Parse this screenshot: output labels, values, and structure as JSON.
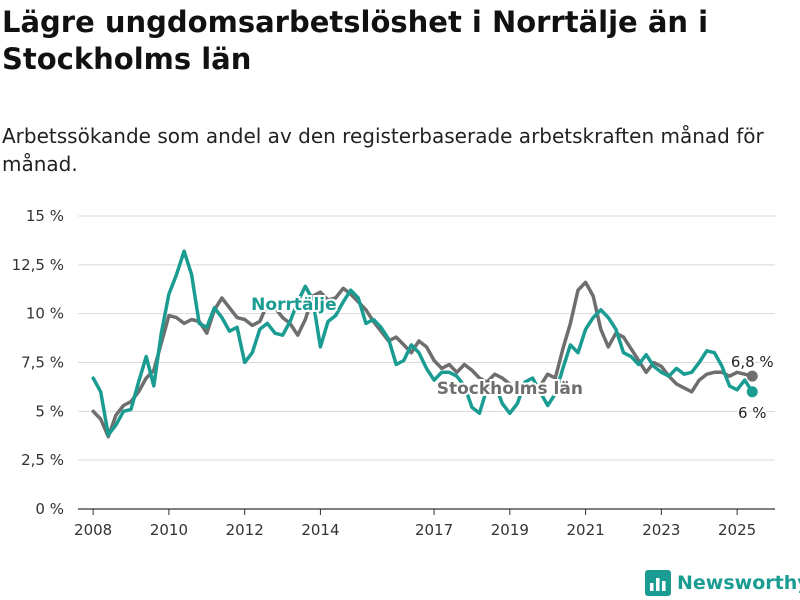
{
  "title": "Lägre ungdomsarbetslöshet i Norrtälje än i Stockholms län",
  "subtitle": "Arbetssökande som andel av den registerbaserade arbetskraften månad för månad.",
  "brand": {
    "name": "Newsworthy",
    "icon": "bar-chart-logo-icon",
    "color": "#1a9c92"
  },
  "chart_data": {
    "type": "line",
    "title": "Lägre ungdomsarbetslöshet i Norrtälje än i Stockholms län",
    "subtitle": "Arbetssökande som andel av den registerbaserade arbetskraften månad för månad.",
    "xlabel": "",
    "ylabel": "",
    "xlim": [
      2007.6,
      2026.0
    ],
    "ylim": [
      0,
      15
    ],
    "yticks": [
      0,
      2.5,
      5,
      7.5,
      10,
      12.5,
      15
    ],
    "ytick_labels": [
      "0 %",
      "2,5 %",
      "5 %",
      "7,5 %",
      "10 %",
      "12,5 %",
      "15 %"
    ],
    "xticks": [
      2008,
      2010,
      2012,
      2014,
      2017,
      2019,
      2021,
      2023,
      2025
    ],
    "xtick_labels": [
      "2008",
      "2010",
      "2012",
      "2014",
      "2017",
      "2019",
      "2021",
      "2023",
      "2025"
    ],
    "grid": "horizontal",
    "series": [
      {
        "name": "Stockholms län",
        "color": "#6e6e6e",
        "end_label": "6,8 %",
        "points": [
          [
            2008.0,
            5.0
          ],
          [
            2008.2,
            4.6
          ],
          [
            2008.4,
            3.7
          ],
          [
            2008.6,
            4.8
          ],
          [
            2008.8,
            5.3
          ],
          [
            2009.0,
            5.5
          ],
          [
            2009.2,
            6.0
          ],
          [
            2009.4,
            6.7
          ],
          [
            2009.6,
            7.1
          ],
          [
            2009.8,
            8.5
          ],
          [
            2010.0,
            9.9
          ],
          [
            2010.2,
            9.8
          ],
          [
            2010.4,
            9.5
          ],
          [
            2010.6,
            9.7
          ],
          [
            2010.8,
            9.6
          ],
          [
            2011.0,
            9.0
          ],
          [
            2011.2,
            10.2
          ],
          [
            2011.4,
            10.8
          ],
          [
            2011.6,
            10.3
          ],
          [
            2011.8,
            9.8
          ],
          [
            2012.0,
            9.7
          ],
          [
            2012.2,
            9.4
          ],
          [
            2012.4,
            9.6
          ],
          [
            2012.6,
            10.5
          ],
          [
            2012.8,
            10.3
          ],
          [
            2013.0,
            9.8
          ],
          [
            2013.2,
            9.5
          ],
          [
            2013.4,
            8.9
          ],
          [
            2013.6,
            9.7
          ],
          [
            2013.8,
            10.9
          ],
          [
            2014.0,
            11.1
          ],
          [
            2014.2,
            10.7
          ],
          [
            2014.4,
            10.8
          ],
          [
            2014.6,
            11.3
          ],
          [
            2014.8,
            11.0
          ],
          [
            2015.0,
            10.6
          ],
          [
            2015.2,
            10.2
          ],
          [
            2015.4,
            9.6
          ],
          [
            2015.6,
            9.1
          ],
          [
            2015.8,
            8.6
          ],
          [
            2016.0,
            8.8
          ],
          [
            2016.2,
            8.4
          ],
          [
            2016.4,
            8.0
          ],
          [
            2016.6,
            8.6
          ],
          [
            2016.8,
            8.3
          ],
          [
            2017.0,
            7.6
          ],
          [
            2017.2,
            7.2
          ],
          [
            2017.4,
            7.4
          ],
          [
            2017.6,
            7.0
          ],
          [
            2017.8,
            7.4
          ],
          [
            2018.0,
            7.1
          ],
          [
            2018.2,
            6.7
          ],
          [
            2018.4,
            6.5
          ],
          [
            2018.6,
            6.9
          ],
          [
            2018.8,
            6.7
          ],
          [
            2019.0,
            6.4
          ],
          [
            2019.2,
            6.0
          ],
          [
            2019.4,
            6.2
          ],
          [
            2019.6,
            5.9
          ],
          [
            2019.8,
            6.3
          ],
          [
            2020.0,
            6.9
          ],
          [
            2020.2,
            6.7
          ],
          [
            2020.4,
            8.2
          ],
          [
            2020.6,
            9.5
          ],
          [
            2020.8,
            11.2
          ],
          [
            2021.0,
            11.6
          ],
          [
            2021.2,
            10.9
          ],
          [
            2021.4,
            9.2
          ],
          [
            2021.6,
            8.3
          ],
          [
            2021.8,
            9.0
          ],
          [
            2022.0,
            8.8
          ],
          [
            2022.2,
            8.2
          ],
          [
            2022.4,
            7.6
          ],
          [
            2022.6,
            7.0
          ],
          [
            2022.8,
            7.5
          ],
          [
            2023.0,
            7.3
          ],
          [
            2023.2,
            6.8
          ],
          [
            2023.4,
            6.4
          ],
          [
            2023.6,
            6.2
          ],
          [
            2023.8,
            6.0
          ],
          [
            2024.0,
            6.6
          ],
          [
            2024.2,
            6.9
          ],
          [
            2024.4,
            7.0
          ],
          [
            2024.6,
            7.0
          ],
          [
            2024.8,
            6.8
          ],
          [
            2025.0,
            7.0
          ],
          [
            2025.2,
            6.9
          ],
          [
            2025.4,
            6.8
          ]
        ]
      },
      {
        "name": "Norrtälje",
        "color": "#1a9c92",
        "end_label": "6 %",
        "points": [
          [
            2008.0,
            6.7
          ],
          [
            2008.2,
            6.0
          ],
          [
            2008.4,
            3.8
          ],
          [
            2008.6,
            4.3
          ],
          [
            2008.8,
            5.0
          ],
          [
            2009.0,
            5.1
          ],
          [
            2009.2,
            6.5
          ],
          [
            2009.4,
            7.8
          ],
          [
            2009.6,
            6.3
          ],
          [
            2009.8,
            9.0
          ],
          [
            2010.0,
            11.0
          ],
          [
            2010.2,
            12.0
          ],
          [
            2010.4,
            13.2
          ],
          [
            2010.6,
            12.0
          ],
          [
            2010.8,
            9.5
          ],
          [
            2011.0,
            9.3
          ],
          [
            2011.2,
            10.3
          ],
          [
            2011.4,
            9.8
          ],
          [
            2011.6,
            9.1
          ],
          [
            2011.8,
            9.3
          ],
          [
            2012.0,
            7.5
          ],
          [
            2012.2,
            8.0
          ],
          [
            2012.4,
            9.2
          ],
          [
            2012.6,
            9.5
          ],
          [
            2012.8,
            9.0
          ],
          [
            2013.0,
            8.9
          ],
          [
            2013.2,
            9.6
          ],
          [
            2013.4,
            10.6
          ],
          [
            2013.6,
            11.4
          ],
          [
            2013.8,
            10.7
          ],
          [
            2014.0,
            8.3
          ],
          [
            2014.2,
            9.6
          ],
          [
            2014.4,
            9.9
          ],
          [
            2014.6,
            10.6
          ],
          [
            2014.8,
            11.2
          ],
          [
            2015.0,
            10.8
          ],
          [
            2015.2,
            9.5
          ],
          [
            2015.4,
            9.7
          ],
          [
            2015.6,
            9.3
          ],
          [
            2015.8,
            8.7
          ],
          [
            2016.0,
            7.4
          ],
          [
            2016.2,
            7.6
          ],
          [
            2016.4,
            8.4
          ],
          [
            2016.6,
            8.0
          ],
          [
            2016.8,
            7.2
          ],
          [
            2017.0,
            6.6
          ],
          [
            2017.2,
            7.0
          ],
          [
            2017.4,
            7.0
          ],
          [
            2017.6,
            6.8
          ],
          [
            2017.8,
            6.3
          ],
          [
            2018.0,
            5.2
          ],
          [
            2018.2,
            4.9
          ],
          [
            2018.4,
            6.2
          ],
          [
            2018.6,
            6.4
          ],
          [
            2018.8,
            5.4
          ],
          [
            2019.0,
            4.9
          ],
          [
            2019.2,
            5.4
          ],
          [
            2019.4,
            6.5
          ],
          [
            2019.6,
            6.7
          ],
          [
            2019.8,
            6.0
          ],
          [
            2020.0,
            5.3
          ],
          [
            2020.2,
            5.9
          ],
          [
            2020.4,
            7.2
          ],
          [
            2020.6,
            8.4
          ],
          [
            2020.8,
            8.0
          ],
          [
            2021.0,
            9.2
          ],
          [
            2021.2,
            9.8
          ],
          [
            2021.4,
            10.2
          ],
          [
            2021.6,
            9.8
          ],
          [
            2021.8,
            9.2
          ],
          [
            2022.0,
            8.0
          ],
          [
            2022.2,
            7.8
          ],
          [
            2022.4,
            7.4
          ],
          [
            2022.6,
            7.9
          ],
          [
            2022.8,
            7.3
          ],
          [
            2023.0,
            7.0
          ],
          [
            2023.2,
            6.8
          ],
          [
            2023.4,
            7.2
          ],
          [
            2023.6,
            6.9
          ],
          [
            2023.8,
            7.0
          ],
          [
            2024.0,
            7.5
          ],
          [
            2024.2,
            8.1
          ],
          [
            2024.4,
            8.0
          ],
          [
            2024.6,
            7.3
          ],
          [
            2024.8,
            6.3
          ],
          [
            2025.0,
            6.1
          ],
          [
            2025.2,
            6.6
          ],
          [
            2025.4,
            6.0
          ]
        ]
      }
    ]
  }
}
